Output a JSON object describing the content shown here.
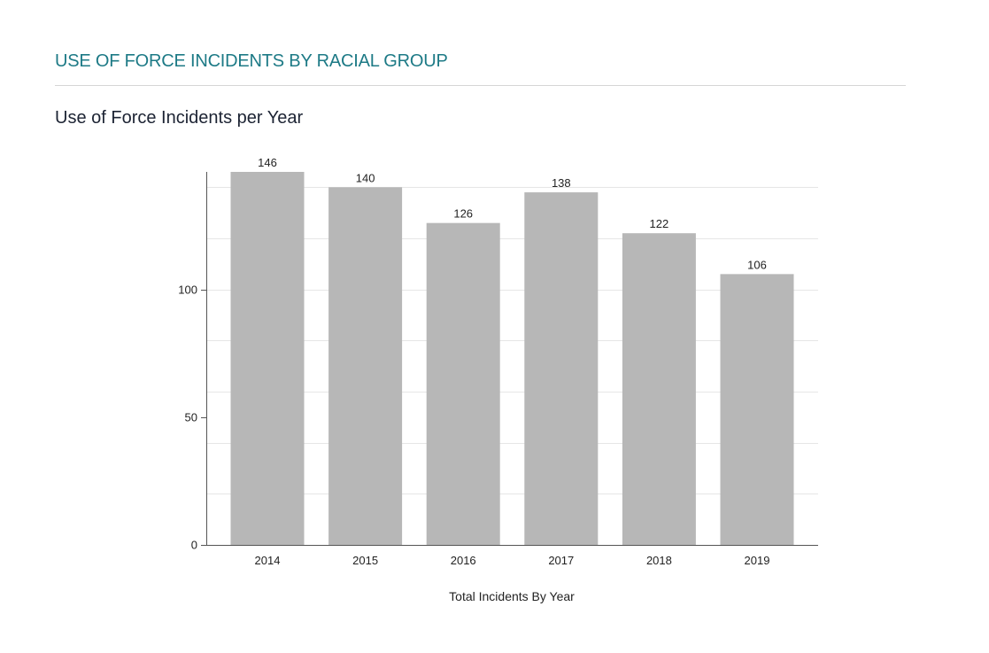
{
  "header": {
    "section_title": "USE OF FORCE INCIDENTS BY RACIAL GROUP",
    "chart_title": "Use of Force Incidents per Year"
  },
  "colors": {
    "accent": "#1d7a86",
    "bar": "#b7b7b7",
    "gridline": "#e6e6e6",
    "axis": "#555555"
  },
  "chart_data": {
    "type": "bar",
    "title": "Use of Force Incidents per Year",
    "categories": [
      "2014",
      "2015",
      "2016",
      "2017",
      "2018",
      "2019"
    ],
    "values": [
      146,
      140,
      126,
      138,
      122,
      106
    ],
    "data_labels": [
      "146",
      "140",
      "126",
      "138",
      "122",
      "106"
    ],
    "xlabel": "Total Incidents By Year",
    "ylabel": "",
    "ylim": [
      0,
      146
    ],
    "yticks": [
      0,
      50,
      100
    ],
    "ytick_labels": [
      "0",
      "50",
      "100"
    ],
    "gridlines": [
      20,
      40,
      60,
      80,
      100,
      120,
      140
    ],
    "grid": true
  }
}
